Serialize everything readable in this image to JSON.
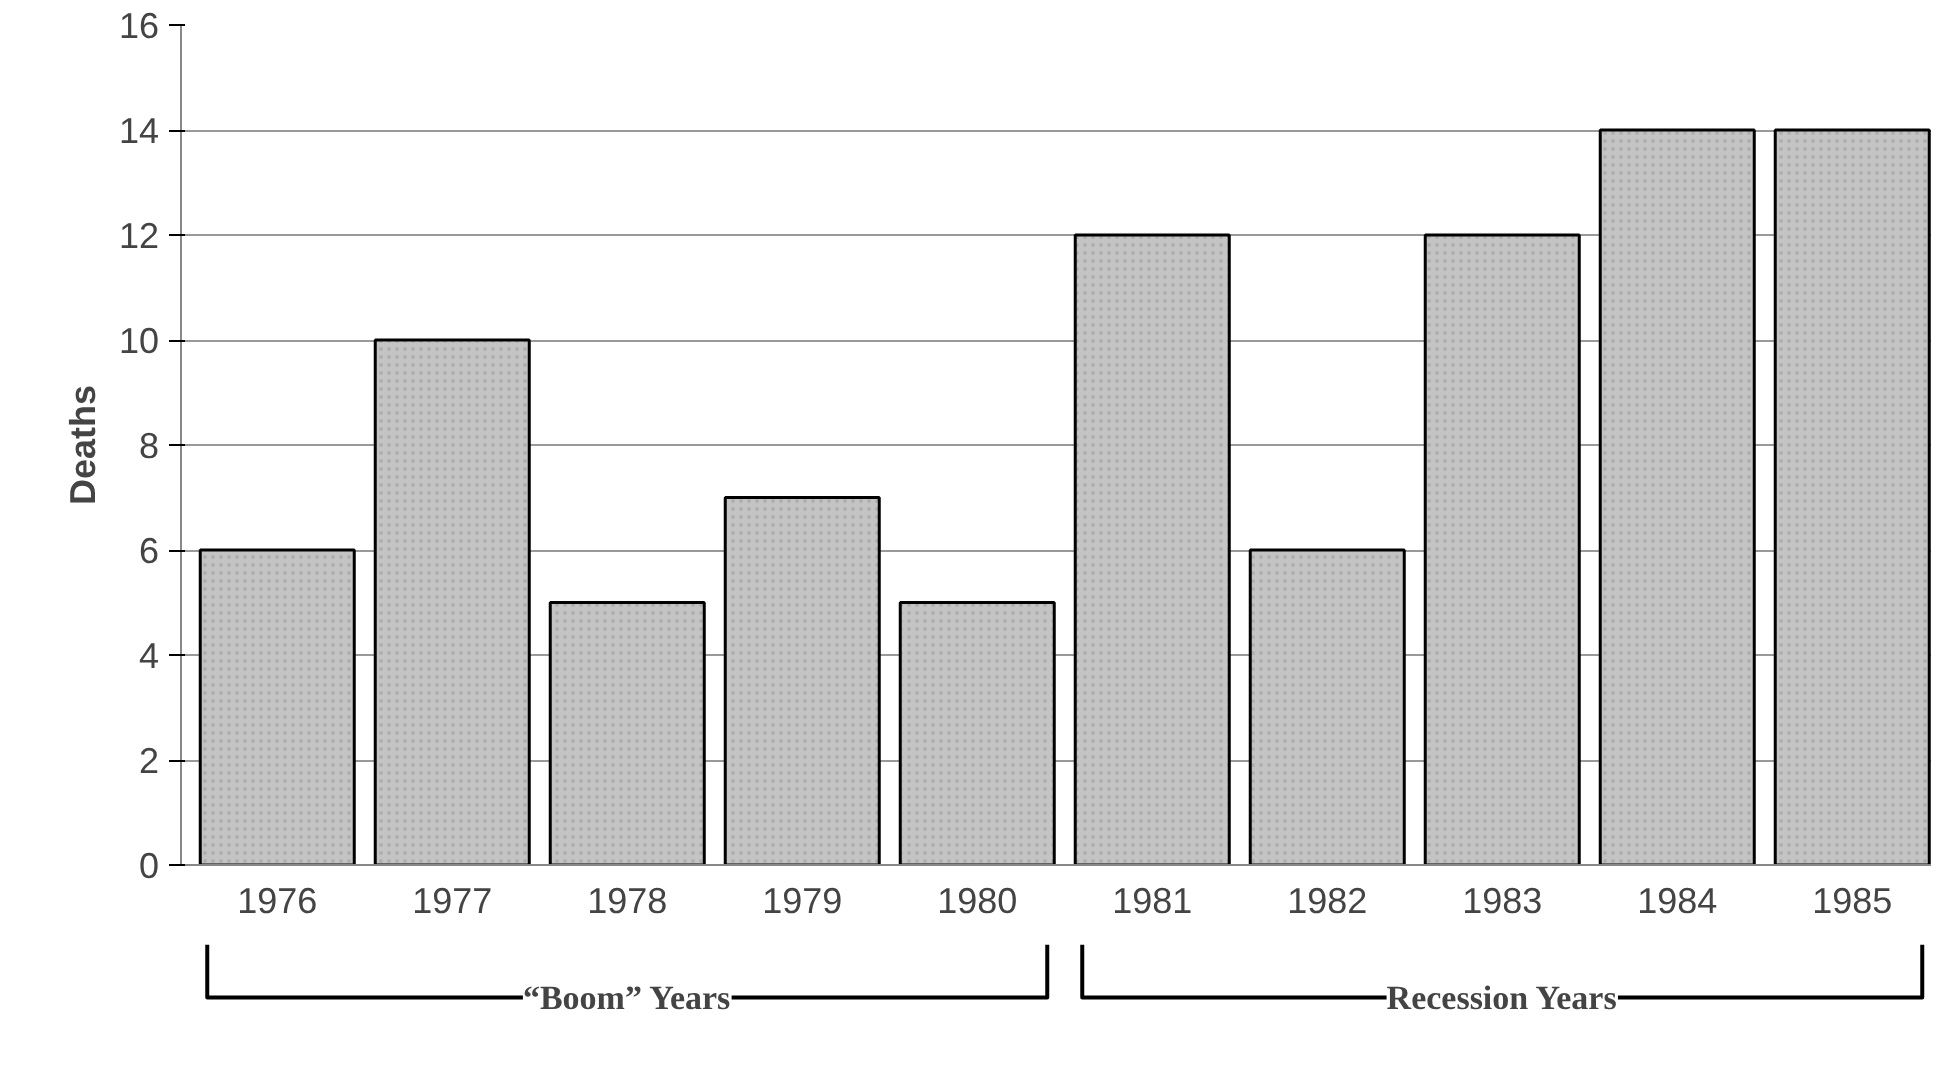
{
  "chart_data": {
    "type": "bar",
    "ylabel": "Deaths",
    "categories": [
      "1976",
      "1977",
      "1978",
      "1979",
      "1980",
      "1981",
      "1982",
      "1983",
      "1984",
      "1985"
    ],
    "values": [
      6,
      10,
      5,
      7,
      5,
      12,
      6,
      12,
      14,
      14
    ],
    "color": "#c4c4c4",
    "ylim": [
      0,
      16
    ],
    "yticks": [
      0,
      2,
      4,
      6,
      8,
      10,
      12,
      14,
      16
    ],
    "grid": "y",
    "annotations": [
      "“Boom” Years",
      "Recession Years"
    ]
  }
}
